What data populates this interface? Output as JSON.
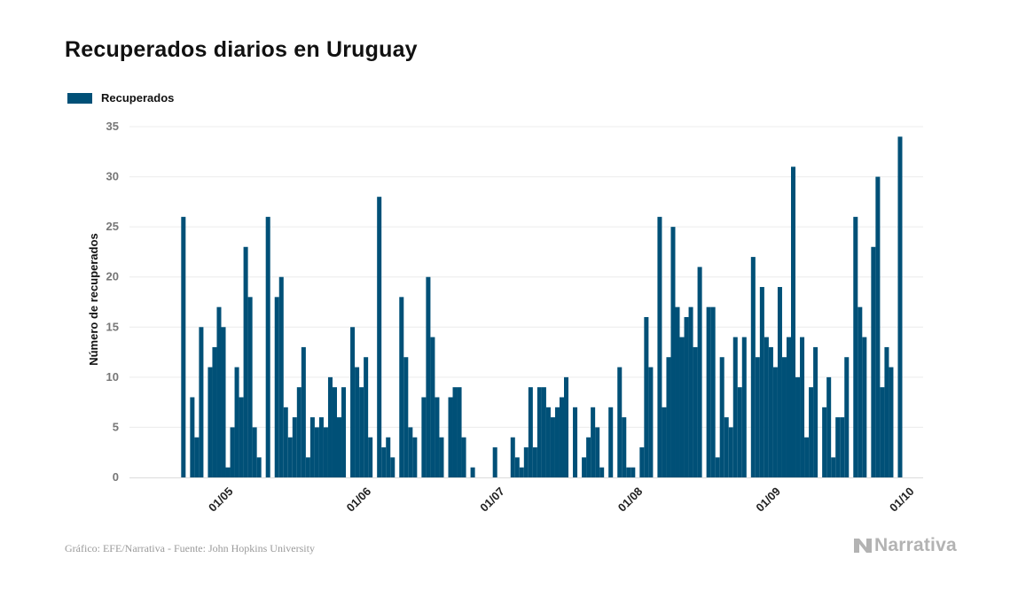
{
  "title": "Recuperados diarios en Uruguay",
  "footer": {
    "source": "Gráfico: EFE/Narrativa - Fuente: John Hopkins University",
    "brand": "Narrativa",
    "brand_icon": "narrativa-logo-icon"
  },
  "colors": {
    "bar": "#005077",
    "grid": "#ececec",
    "brand": "#b3b3b3"
  },
  "chart_data": {
    "type": "bar",
    "title": "Recuperados diarios en Uruguay",
    "ylabel": "Número de recuperados",
    "xlabel": "",
    "ylim": [
      0,
      35
    ],
    "yticks": [
      0,
      5,
      10,
      15,
      20,
      25,
      30,
      35
    ],
    "grid": true,
    "legend_position": "top-left",
    "x_start": "2020-04-14",
    "x_end": "2020-10-01",
    "xticks": [
      {
        "date": "2020-05-01",
        "label": "01/05"
      },
      {
        "date": "2020-06-01",
        "label": "01/06"
      },
      {
        "date": "2020-07-01",
        "label": "01/07"
      },
      {
        "date": "2020-08-01",
        "label": "01/08"
      },
      {
        "date": "2020-09-01",
        "label": "01/09"
      },
      {
        "date": "2020-10-01",
        "label": "01/10"
      }
    ],
    "series": [
      {
        "name": "Recuperados",
        "start_date": "2020-04-22",
        "values": [
          26,
          0,
          8,
          4,
          15,
          0,
          11,
          13,
          17,
          15,
          1,
          5,
          11,
          8,
          23,
          18,
          5,
          2,
          0,
          26,
          0,
          18,
          20,
          7,
          4,
          6,
          9,
          13,
          2,
          6,
          5,
          6,
          5,
          10,
          9,
          6,
          9,
          0,
          15,
          11,
          9,
          12,
          4,
          0,
          28,
          3,
          4,
          2,
          0,
          18,
          12,
          5,
          4,
          0,
          8,
          20,
          14,
          8,
          4,
          0,
          8,
          9,
          9,
          4,
          0,
          1,
          0,
          0,
          0,
          0,
          3,
          0,
          0,
          0,
          4,
          2,
          1,
          3,
          9,
          3,
          9,
          9,
          7,
          6,
          7,
          8,
          10,
          0,
          7,
          0,
          2,
          4,
          7,
          5,
          1,
          0,
          7,
          0,
          11,
          6,
          1,
          1,
          0,
          3,
          16,
          11,
          0,
          26,
          7,
          12,
          25,
          17,
          14,
          16,
          17,
          13,
          21,
          0,
          17,
          17,
          2,
          12,
          6,
          5,
          14,
          9,
          14,
          0,
          22,
          12,
          19,
          14,
          13,
          11,
          19,
          12,
          14,
          31,
          10,
          14,
          4,
          9,
          13,
          0,
          7,
          10,
          2,
          6,
          6,
          12,
          0,
          26,
          17,
          14,
          0,
          23,
          30,
          9,
          13,
          11,
          0,
          34
        ]
      }
    ]
  }
}
